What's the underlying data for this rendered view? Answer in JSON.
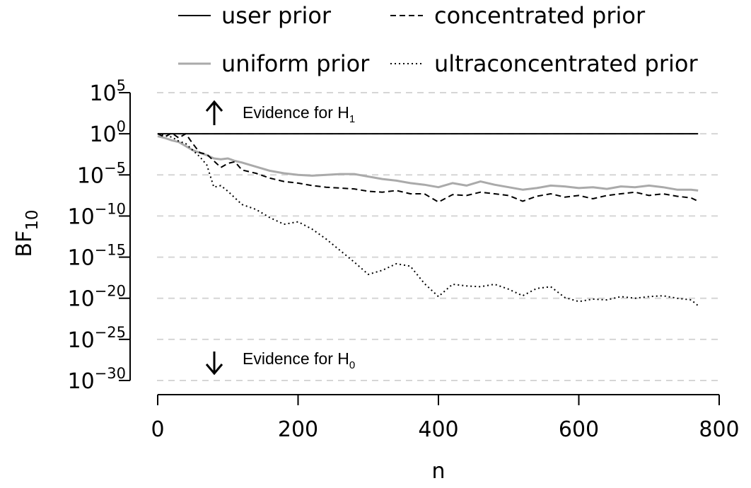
{
  "chart_data": {
    "type": "line",
    "title": "",
    "xlabel": "n",
    "ylabel_main": "BF",
    "ylabel_sub": "10",
    "xlim": [
      0,
      800
    ],
    "ylim_exponent": [
      -30,
      5
    ],
    "y_scale": "log10",
    "x_ticks": [
      0,
      200,
      400,
      600,
      800
    ],
    "x_tick_labels": [
      "0",
      "200",
      "400",
      "600",
      "800"
    ],
    "y_ticks": [
      {
        "base": "10",
        "exp": "5",
        "value": 5
      },
      {
        "base": "10",
        "exp": "0",
        "value": 0
      },
      {
        "base": "10",
        "exp": "−5",
        "value": -5
      },
      {
        "base": "10",
        "exp": "−10",
        "value": -10
      },
      {
        "base": "10",
        "exp": "−15",
        "value": -15
      },
      {
        "base": "10",
        "exp": "−20",
        "value": -20
      },
      {
        "base": "10",
        "exp": "−25",
        "value": -25
      },
      {
        "base": "10",
        "exp": "−30",
        "value": -30
      }
    ],
    "grid": "horizontal dashed at y ticks",
    "legend_position": "top",
    "annotations": {
      "h1": {
        "text": "Evidence for H",
        "sub": "1",
        "arrow": "up"
      },
      "h0": {
        "text": "Evidence for H",
        "sub": "0",
        "arrow": "down"
      }
    },
    "series": [
      {
        "name": "user prior",
        "color": "#000000",
        "dash": "solid",
        "x": [
          0,
          5,
          10,
          770
        ],
        "log10_y": [
          0,
          0,
          0,
          0
        ]
      },
      {
        "name": "uniform prior",
        "color": "#aaaaaa",
        "dash": "solid",
        "x": [
          0,
          10,
          20,
          30,
          40,
          50,
          60,
          70,
          80,
          90,
          100,
          110,
          120,
          140,
          160,
          180,
          200,
          220,
          240,
          260,
          280,
          300,
          320,
          340,
          360,
          380,
          400,
          420,
          440,
          460,
          480,
          500,
          520,
          540,
          560,
          580,
          600,
          620,
          640,
          660,
          680,
          700,
          720,
          740,
          760,
          770
        ],
        "log10_y": [
          -0.3,
          -0.5,
          -0.8,
          -1.0,
          -1.5,
          -2.0,
          -2.3,
          -2.6,
          -3.0,
          -3.1,
          -3.0,
          -3.3,
          -3.5,
          -4.0,
          -4.5,
          -4.8,
          -5.0,
          -5.1,
          -5.0,
          -4.9,
          -4.9,
          -5.2,
          -5.5,
          -5.7,
          -6.0,
          -6.2,
          -6.5,
          -6.0,
          -6.3,
          -5.8,
          -6.2,
          -6.5,
          -6.8,
          -6.6,
          -6.3,
          -6.4,
          -6.6,
          -6.5,
          -6.7,
          -6.4,
          -6.5,
          -6.3,
          -6.5,
          -6.8,
          -6.8,
          -6.9
        ]
      },
      {
        "name": "concentrated prior",
        "color": "#000000",
        "dash": "dashed",
        "x": [
          0,
          10,
          20,
          30,
          40,
          50,
          60,
          70,
          80,
          90,
          100,
          110,
          120,
          140,
          160,
          180,
          200,
          220,
          240,
          260,
          280,
          300,
          320,
          340,
          360,
          380,
          400,
          420,
          440,
          460,
          480,
          500,
          520,
          540,
          560,
          580,
          600,
          620,
          640,
          660,
          680,
          700,
          720,
          740,
          760,
          770
        ],
        "log10_y": [
          0,
          -0.4,
          0.1,
          -0.5,
          0.0,
          -1.2,
          -2.3,
          -2.5,
          -3.3,
          -4.1,
          -3.6,
          -3.4,
          -4.4,
          -4.8,
          -5.4,
          -5.8,
          -6.0,
          -6.3,
          -6.5,
          -6.6,
          -6.7,
          -7.0,
          -7.1,
          -6.9,
          -7.3,
          -7.3,
          -8.3,
          -7.4,
          -7.5,
          -7.1,
          -7.3,
          -7.5,
          -8.2,
          -7.6,
          -7.3,
          -7.7,
          -7.5,
          -7.9,
          -7.5,
          -7.3,
          -7.1,
          -7.5,
          -7.3,
          -7.6,
          -7.8,
          -8.2
        ]
      },
      {
        "name": "ultraconcentrated prior",
        "color": "#000000",
        "dash": "dotted",
        "x": [
          0,
          10,
          20,
          30,
          40,
          50,
          60,
          70,
          80,
          90,
          100,
          110,
          120,
          140,
          160,
          180,
          200,
          220,
          240,
          260,
          280,
          300,
          320,
          340,
          360,
          380,
          400,
          420,
          440,
          460,
          480,
          500,
          520,
          540,
          560,
          580,
          600,
          620,
          640,
          660,
          680,
          700,
          720,
          740,
          760,
          770
        ],
        "log10_y": [
          0,
          -0.2,
          -0.4,
          -0.9,
          -1.2,
          -2.0,
          -2.8,
          -3.8,
          -6.5,
          -6.3,
          -7.0,
          -7.8,
          -8.6,
          -9.2,
          -10.2,
          -11.0,
          -10.7,
          -11.6,
          -12.8,
          -14.2,
          -15.6,
          -17.1,
          -16.6,
          -15.8,
          -16.1,
          -18.2,
          -19.8,
          -18.3,
          -18.5,
          -18.6,
          -18.3,
          -18.9,
          -19.7,
          -18.8,
          -18.6,
          -19.9,
          -20.4,
          -20.1,
          -20.2,
          -19.8,
          -20.0,
          -19.8,
          -19.7,
          -20.0,
          -20.2,
          -20.9
        ]
      }
    ]
  }
}
